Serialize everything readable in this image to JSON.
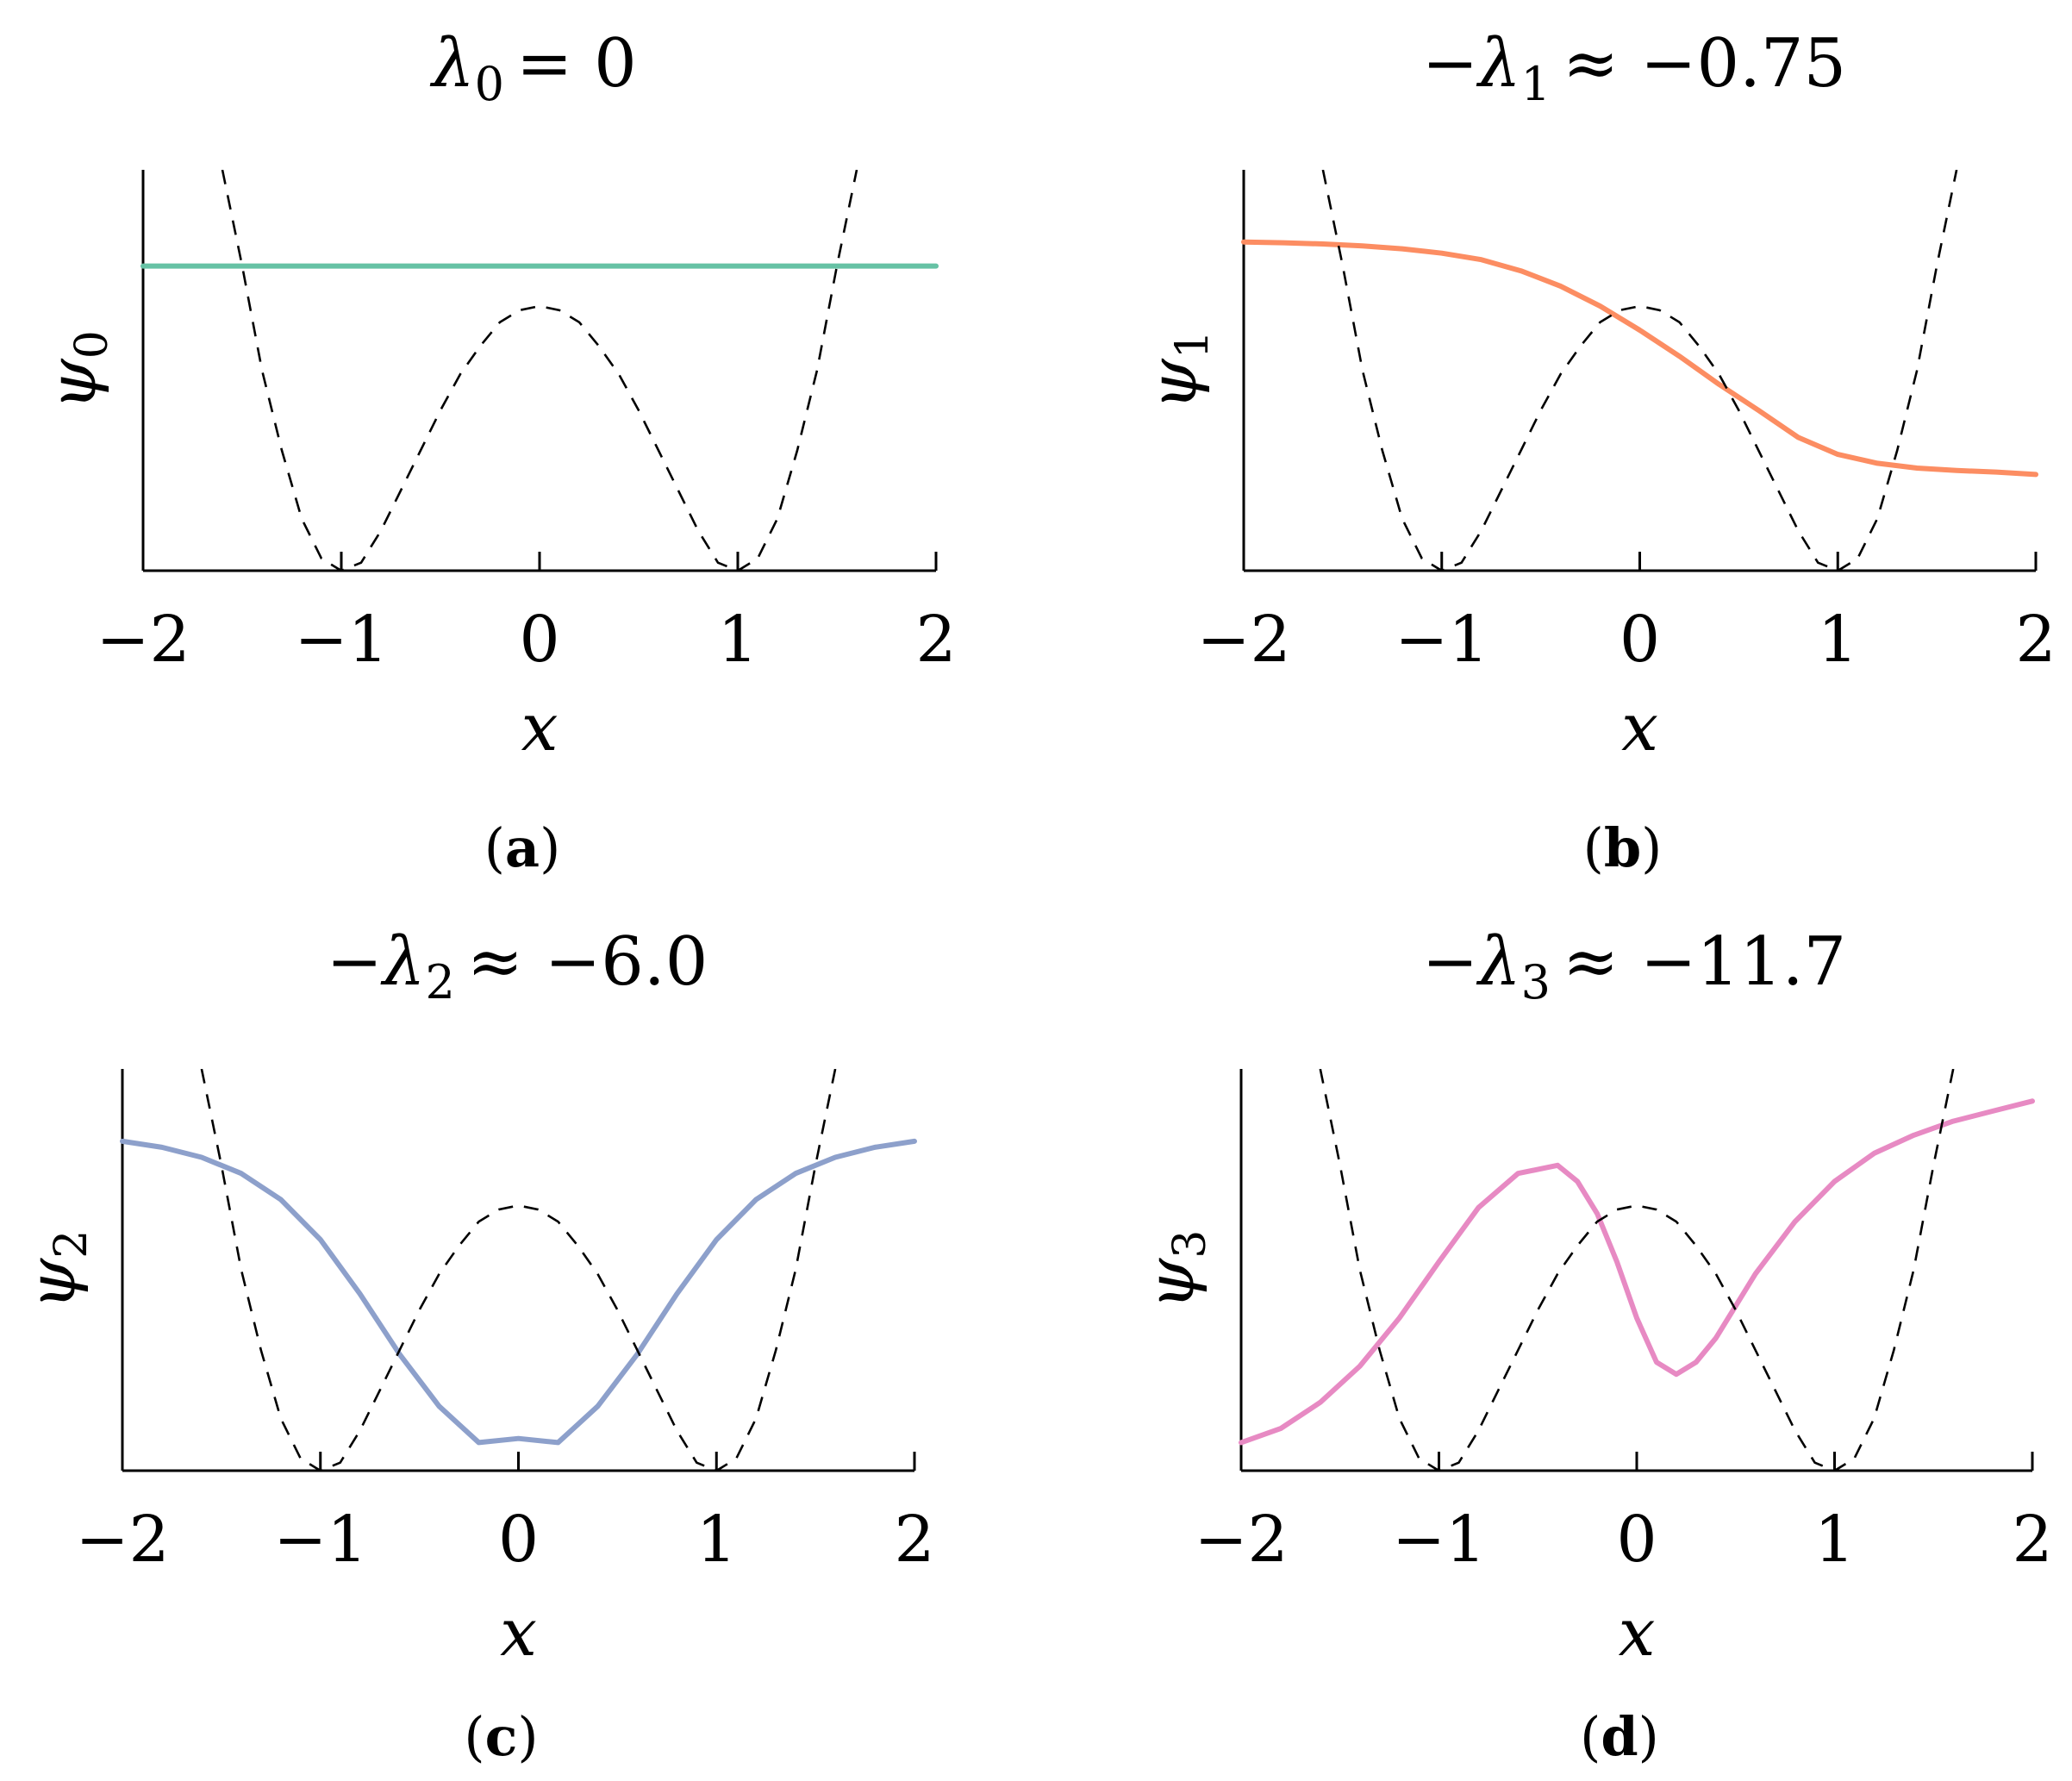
{
  "chart_data": [
    {
      "type": "line",
      "panel_label": "a",
      "title": {
        "symbol": "λ",
        "subscript": "0",
        "relation": "= 0",
        "prefix": ""
      },
      "xlabel": "x",
      "ylabel": {
        "symbol": "ψ",
        "subscript": "0"
      },
      "xlim": [
        -2,
        2
      ],
      "xticks": [
        -2,
        -1,
        0,
        1,
        2
      ],
      "xtick_labels": [
        "−2",
        "−1",
        "0",
        "1",
        "2"
      ],
      "color": "#66c2a5",
      "series": [
        {
          "style": "solid",
          "x": [
            -2.0,
            -1.5,
            -1.0,
            -0.5,
            0.0,
            0.5,
            1.0,
            1.5,
            2.0
          ],
          "y": [
            0.76,
            0.76,
            0.76,
            0.76,
            0.76,
            0.76,
            0.76,
            0.76,
            0.76
          ]
        },
        {
          "style": "dashed",
          "x": [
            -1.6,
            -1.5,
            -1.4,
            -1.3,
            -1.2,
            -1.1,
            -1.0,
            -0.9,
            -0.8,
            -0.7,
            -0.6,
            -0.5,
            -0.4,
            -0.3,
            -0.2,
            -0.1,
            0.0,
            0.1,
            0.2,
            0.3,
            0.4,
            0.5,
            0.6,
            0.7,
            0.8,
            0.9,
            1.0,
            1.1,
            1.2,
            1.3,
            1.4,
            1.5,
            1.6
          ],
          "y": [
            1.0,
            0.76,
            0.5,
            0.3,
            0.13,
            0.03,
            0.0,
            0.02,
            0.1,
            0.2,
            0.3,
            0.4,
            0.49,
            0.56,
            0.62,
            0.65,
            0.66,
            0.65,
            0.62,
            0.56,
            0.49,
            0.4,
            0.3,
            0.2,
            0.1,
            0.02,
            0.0,
            0.03,
            0.13,
            0.3,
            0.5,
            0.76,
            1.0
          ]
        }
      ]
    },
    {
      "type": "line",
      "panel_label": "b",
      "title": {
        "symbol": "λ",
        "subscript": "1",
        "relation": "≈ −0.75",
        "prefix": "−"
      },
      "xlabel": "x",
      "ylabel": {
        "symbol": "ψ",
        "subscript": "1"
      },
      "xlim": [
        -2,
        2
      ],
      "xticks": [
        -2,
        -1,
        0,
        1,
        2
      ],
      "xtick_labels": [
        "−2",
        "−1",
        "0",
        "1",
        "2"
      ],
      "color": "#fc8d62",
      "series": [
        {
          "style": "solid",
          "x": [
            -2.0,
            -1.8,
            -1.6,
            -1.4,
            -1.2,
            -1.0,
            -0.8,
            -0.6,
            -0.4,
            -0.2,
            0.0,
            0.2,
            0.4,
            0.6,
            0.8,
            1.0,
            1.2,
            1.4,
            1.6,
            1.8,
            2.0
          ],
          "y": [
            0.82,
            0.818,
            0.815,
            0.81,
            0.803,
            0.792,
            0.776,
            0.748,
            0.71,
            0.66,
            0.6,
            0.535,
            0.465,
            0.4,
            0.3325,
            0.29,
            0.268,
            0.256,
            0.25,
            0.246,
            0.24
          ]
        },
        {
          "style": "dashed",
          "x": [
            -1.6,
            -1.5,
            -1.4,
            -1.3,
            -1.2,
            -1.1,
            -1.0,
            -0.9,
            -0.8,
            -0.7,
            -0.6,
            -0.5,
            -0.4,
            -0.3,
            -0.2,
            -0.1,
            0.0,
            0.1,
            0.2,
            0.3,
            0.4,
            0.5,
            0.6,
            0.7,
            0.8,
            0.9,
            1.0,
            1.1,
            1.2,
            1.3,
            1.4,
            1.5,
            1.6
          ],
          "y": [
            1.0,
            0.76,
            0.5,
            0.3,
            0.13,
            0.03,
            0.0,
            0.02,
            0.1,
            0.2,
            0.3,
            0.4,
            0.49,
            0.56,
            0.62,
            0.65,
            0.66,
            0.65,
            0.62,
            0.56,
            0.49,
            0.4,
            0.3,
            0.2,
            0.1,
            0.02,
            0.0,
            0.03,
            0.13,
            0.3,
            0.5,
            0.76,
            1.0
          ]
        }
      ]
    },
    {
      "type": "line",
      "panel_label": "c",
      "title": {
        "symbol": "λ",
        "subscript": "2",
        "relation": "≈ −6.0",
        "prefix": "−"
      },
      "xlabel": "x",
      "ylabel": {
        "symbol": "ψ",
        "subscript": "2"
      },
      "xlim": [
        -2,
        2
      ],
      "xticks": [
        -2,
        -1,
        0,
        1,
        2
      ],
      "xtick_labels": [
        "−2",
        "−1",
        "0",
        "1",
        "2"
      ],
      "color": "#8da0cb",
      "series": [
        {
          "style": "solid",
          "x": [
            -2.0,
            -1.8,
            -1.6,
            -1.4,
            -1.2,
            -1.0,
            -0.8,
            -0.6,
            -0.4,
            -0.2,
            0.0,
            0.2,
            0.4,
            0.6,
            0.8,
            1.0,
            1.2,
            1.4,
            1.6,
            1.8,
            2.0
          ],
          "y": [
            0.82,
            0.805,
            0.78,
            0.74,
            0.675,
            0.575,
            0.44,
            0.29,
            0.16,
            0.07,
            0.08,
            0.07,
            0.16,
            0.29,
            0.44,
            0.575,
            0.675,
            0.74,
            0.78,
            0.805,
            0.82
          ]
        },
        {
          "style": "dashed",
          "x": [
            -1.6,
            -1.5,
            -1.4,
            -1.3,
            -1.2,
            -1.1,
            -1.0,
            -0.9,
            -0.8,
            -0.7,
            -0.6,
            -0.5,
            -0.4,
            -0.3,
            -0.2,
            -0.1,
            0.0,
            0.1,
            0.2,
            0.3,
            0.4,
            0.5,
            0.6,
            0.7,
            0.8,
            0.9,
            1.0,
            1.1,
            1.2,
            1.3,
            1.4,
            1.5,
            1.6
          ],
          "y": [
            1.0,
            0.76,
            0.5,
            0.3,
            0.13,
            0.03,
            0.0,
            0.02,
            0.1,
            0.2,
            0.3,
            0.4,
            0.49,
            0.56,
            0.62,
            0.65,
            0.66,
            0.65,
            0.62,
            0.56,
            0.49,
            0.4,
            0.3,
            0.2,
            0.1,
            0.02,
            0.0,
            0.03,
            0.13,
            0.3,
            0.5,
            0.76,
            1.0
          ]
        }
      ]
    },
    {
      "type": "line",
      "panel_label": "d",
      "title": {
        "symbol": "λ",
        "subscript": "3",
        "relation": "≈ −11.7",
        "prefix": "−"
      },
      "xlabel": "x",
      "ylabel": {
        "symbol": "ψ",
        "subscript": "3"
      },
      "xlim": [
        -2,
        2
      ],
      "xticks": [
        -2,
        -1,
        0,
        1,
        2
      ],
      "xtick_labels": [
        "−2",
        "−1",
        "0",
        "1",
        "2"
      ],
      "color": "#e78ac3",
      "series": [
        {
          "style": "solid",
          "x": [
            -2.0,
            -1.8,
            -1.6,
            -1.4,
            -1.2,
            -1.0,
            -0.8,
            -0.6,
            -0.4,
            -0.3,
            -0.2,
            -0.1,
            0.0,
            0.1,
            0.2,
            0.3,
            0.4,
            0.5,
            0.6,
            0.8,
            1.0,
            1.2,
            1.4,
            1.6,
            1.8,
            2.0
          ],
          "y": [
            0.07,
            0.105,
            0.17,
            0.26,
            0.38,
            0.52,
            0.655,
            0.74,
            0.76,
            0.72,
            0.64,
            0.52,
            0.38,
            0.27,
            0.24,
            0.27,
            0.33,
            0.41,
            0.49,
            0.62,
            0.72,
            0.79,
            0.835,
            0.87,
            0.895,
            0.92
          ]
        },
        {
          "style": "dashed",
          "x": [
            -1.6,
            -1.5,
            -1.4,
            -1.3,
            -1.2,
            -1.1,
            -1.0,
            -0.9,
            -0.8,
            -0.7,
            -0.6,
            -0.5,
            -0.4,
            -0.3,
            -0.2,
            -0.1,
            0.0,
            0.1,
            0.2,
            0.3,
            0.4,
            0.5,
            0.6,
            0.7,
            0.8,
            0.9,
            1.0,
            1.1,
            1.2,
            1.3,
            1.4,
            1.5,
            1.6
          ],
          "y": [
            1.0,
            0.76,
            0.5,
            0.3,
            0.13,
            0.03,
            0.0,
            0.02,
            0.1,
            0.2,
            0.3,
            0.4,
            0.49,
            0.56,
            0.62,
            0.65,
            0.66,
            0.65,
            0.62,
            0.56,
            0.49,
            0.4,
            0.3,
            0.2,
            0.1,
            0.02,
            0.0,
            0.03,
            0.13,
            0.3,
            0.5,
            0.76,
            1.0
          ]
        }
      ]
    }
  ]
}
